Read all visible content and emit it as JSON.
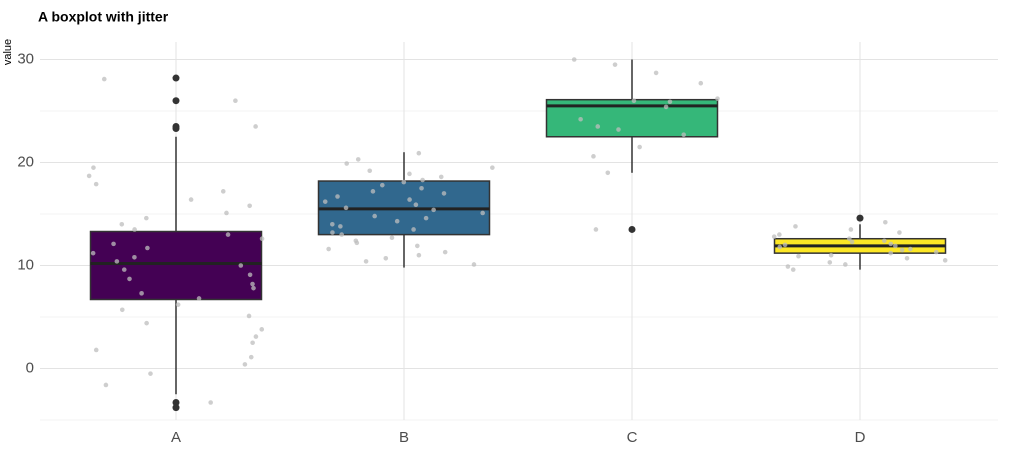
{
  "chart_data": {
    "type": "boxplot",
    "title": "A boxplot with jitter",
    "y_label": "value",
    "categories": [
      "A",
      "B",
      "C",
      "D"
    ],
    "ylim": [
      -5,
      31.7
    ],
    "yticks": [
      0,
      10,
      20,
      30
    ],
    "minor_yticks": [
      -5,
      5,
      15,
      25
    ],
    "grid": true,
    "point_color": "#bdbdbd",
    "outlier_color": "#333333",
    "boxes": [
      {
        "color": "#440154",
        "whisker_low": -2.5,
        "q1": 6.7,
        "median": 10.2,
        "q3": 13.3,
        "whisker_high": 22.5,
        "outliers": [
          28.2,
          26,
          23.5,
          23.3,
          -3.3,
          -3.8
        ],
        "points": [
          28.1,
          26,
          23.5,
          19.5,
          18.7,
          17.9,
          17.2,
          16.4,
          15.8,
          15.1,
          14.6,
          14,
          13.5,
          13,
          12.6,
          12.1,
          11.7,
          11.2,
          10.8,
          10.4,
          10,
          9.6,
          9.1,
          8.7,
          8.2,
          7.8,
          7.3,
          6.8,
          6.2,
          5.7,
          5.1,
          4.4,
          3.8,
          3.1,
          2.5,
          1.8,
          1.1,
          0.4,
          -0.5,
          -1.6,
          -3.3
        ]
      },
      {
        "color": "#31688e",
        "whisker_low": 9.8,
        "q1": 13,
        "median": 15.5,
        "q3": 18.2,
        "whisker_high": 21,
        "outliers": [],
        "points": [
          20.9,
          20.3,
          19.9,
          19.5,
          19.2,
          18.9,
          18.6,
          18.3,
          18.1,
          17.8,
          17.5,
          17.2,
          17,
          16.7,
          16.4,
          16.2,
          15.9,
          15.6,
          15.4,
          15.1,
          14.8,
          14.6,
          14.3,
          14,
          13.8,
          13.5,
          13.2,
          13,
          12.7,
          12.4,
          12.2,
          11.9,
          11.6,
          11.3,
          11,
          10.7,
          10.4,
          10.1
        ]
      },
      {
        "color": "#35b779",
        "whisker_low": 19,
        "q1": 22.5,
        "median": 25.5,
        "q3": 26.1,
        "whisker_high": 30,
        "outliers": [
          13.5
        ],
        "points": [
          30,
          29.5,
          28.7,
          27.7,
          26.2,
          26,
          25.9,
          25.4,
          24.2,
          23.5,
          23.2,
          22.7,
          21.5,
          20.6,
          19,
          13.5
        ]
      },
      {
        "color": "#fde725",
        "whisker_low": 9.6,
        "q1": 11.2,
        "median": 11.9,
        "q3": 12.6,
        "whisker_high": 14,
        "outliers": [
          14.6
        ],
        "points": [
          14.2,
          13.8,
          13.5,
          13.2,
          13,
          12.8,
          12.6,
          12.4,
          12.3,
          12.1,
          12,
          11.9,
          11.8,
          11.6,
          11.5,
          11.3,
          11.2,
          11,
          10.9,
          10.7,
          10.5,
          10.3,
          10.1,
          9.9,
          9.6
        ]
      }
    ]
  }
}
